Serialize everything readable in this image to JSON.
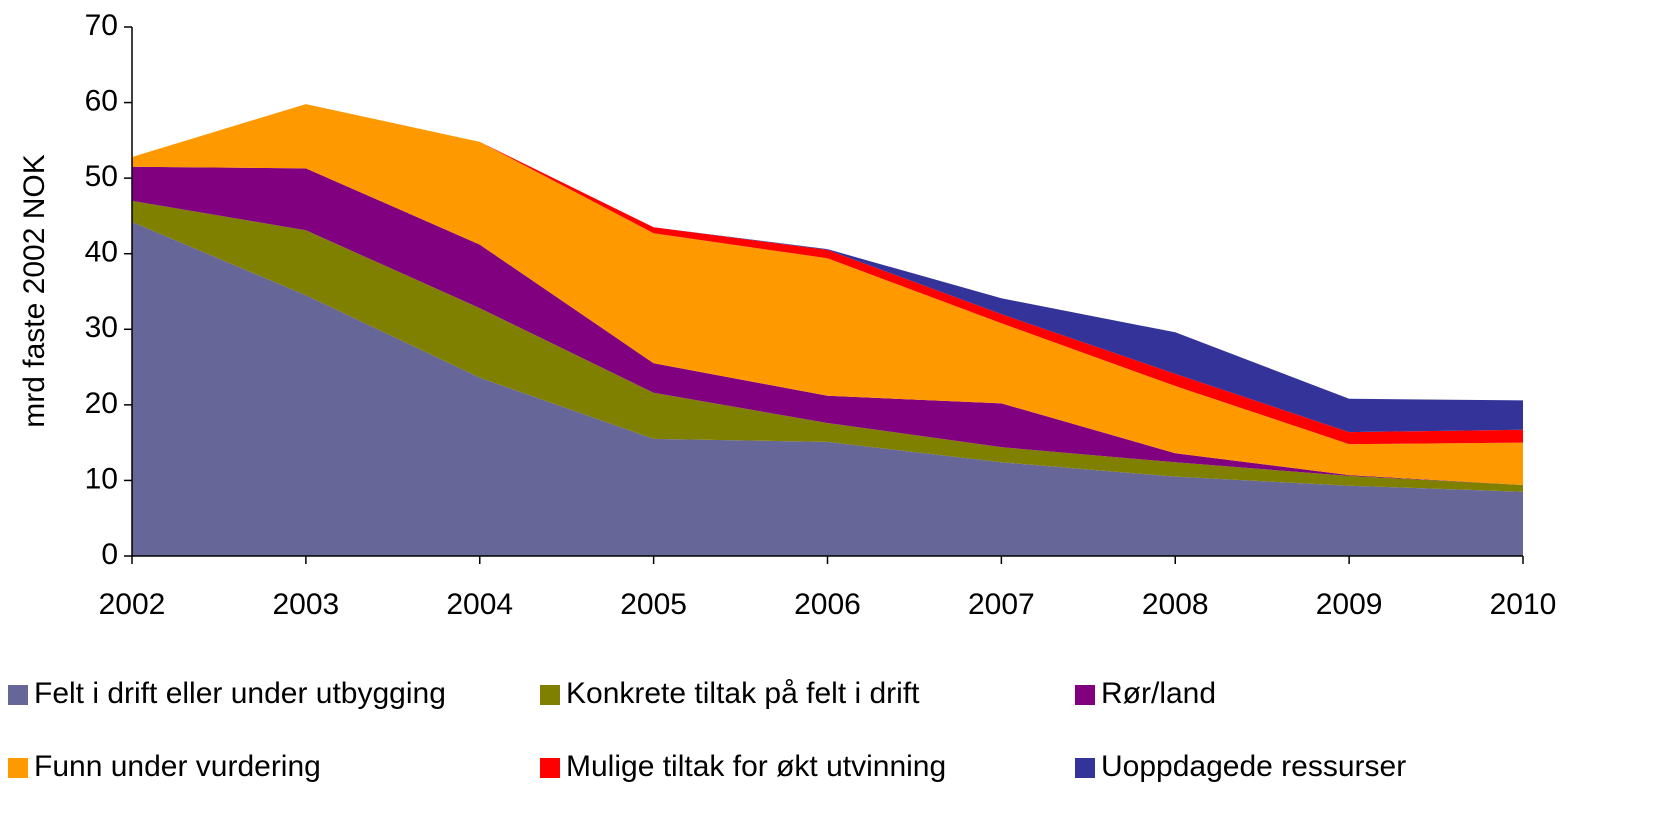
{
  "chart_data": {
    "type": "stacked_area",
    "y_label": "mrd faste 2002 NOK",
    "x": [
      2002,
      2003,
      2004,
      2005,
      2006,
      2007,
      2008,
      2009,
      2010
    ],
    "xlim": [
      2002,
      2010
    ],
    "xticks": [
      2002,
      2003,
      2004,
      2005,
      2006,
      2007,
      2008,
      2009,
      2010
    ],
    "ylim": [
      0,
      70
    ],
    "yticks": [
      0,
      10,
      20,
      30,
      40,
      50,
      60,
      70
    ],
    "grid": false,
    "legend": "bottom",
    "series": [
      {
        "name": "Felt i drift eller under utbygging",
        "color": "#666699",
        "values": [
          44.2,
          34.5,
          23.6,
          15.5,
          15.1,
          12.4,
          10.5,
          9.3,
          8.5
        ]
      },
      {
        "name": "Konkrete tiltak på felt i drift",
        "color": "#808000",
        "values": [
          2.8,
          8.6,
          9.2,
          6.1,
          2.5,
          2.0,
          1.9,
          1.3,
          0.9
        ]
      },
      {
        "name": "Rør/land",
        "color": "#800080",
        "values": [
          4.5,
          8.2,
          8.4,
          3.9,
          3.6,
          5.8,
          1.2,
          0.1,
          0
        ]
      },
      {
        "name": "Funn under vurdering",
        "color": "#ff9900",
        "values": [
          1.3,
          8.5,
          13.6,
          17.2,
          18.2,
          10.6,
          8.9,
          4.1,
          5.6
        ]
      },
      {
        "name": "Mulige tiltak for økt utvinning",
        "color": "#ff0000",
        "values": [
          0,
          0,
          0,
          0.8,
          1.1,
          1.2,
          1.6,
          1.6,
          1.7
        ]
      },
      {
        "name": "Uoppdagede ressurser",
        "color": "#333399",
        "values": [
          0,
          0,
          0,
          0,
          0.1,
          2.1,
          5.5,
          4.4,
          3.9
        ]
      }
    ]
  }
}
